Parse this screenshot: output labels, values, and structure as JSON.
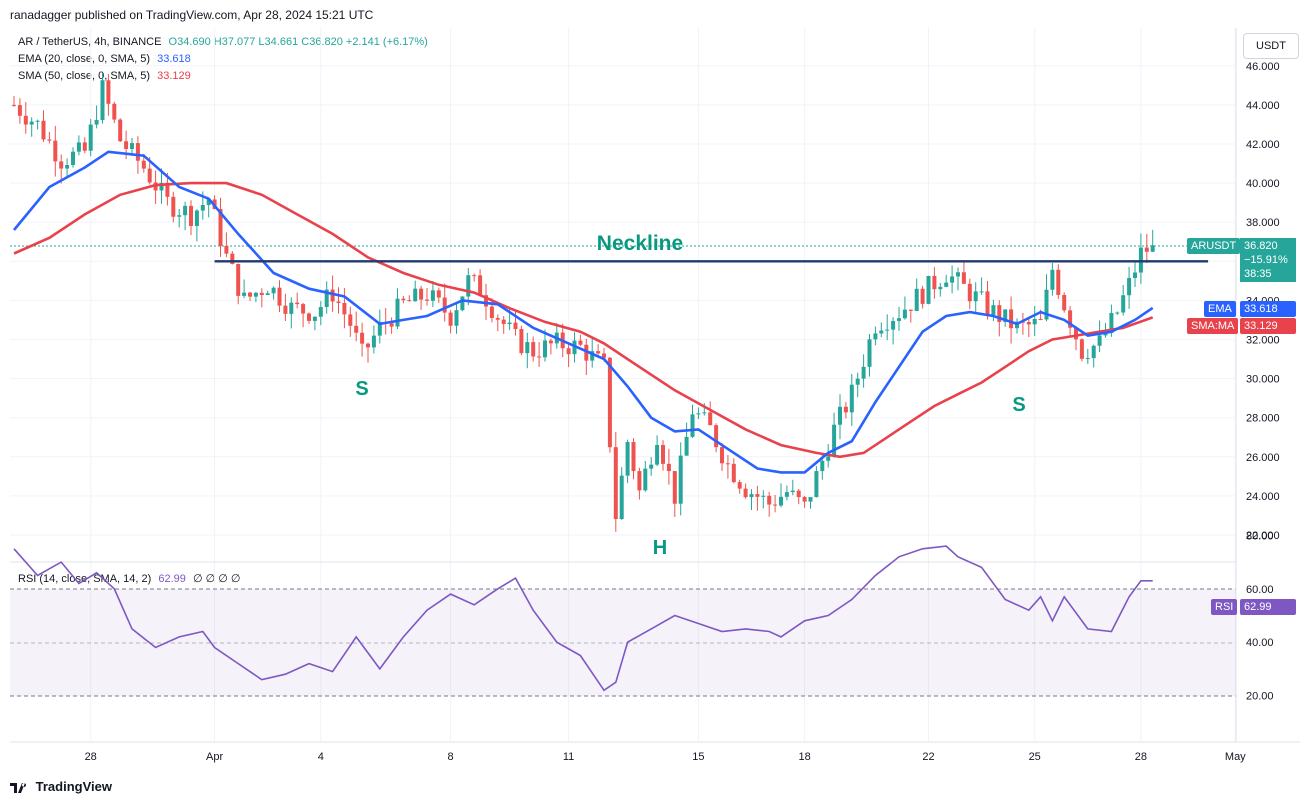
{
  "header": {
    "publisher": "ranadagger published on TradingView.com, Apr 28, 2024 15:21 UTC"
  },
  "legend": {
    "symbol": "AR / TetherUS, 4h, BINANCE",
    "ohlc": "O34.690 H37.077 L34.661 C36.820 +2.141 (+6.17%)",
    "ema_label": "EMA (20, close, 0, SMA, 5)",
    "ema_value": "33.618",
    "sma_label": "SMA (50, close, 0, SMA, 5)",
    "sma_value": "33.129",
    "rsi_label": "RSI (14, close, SMA, 14, 2)",
    "rsi_value": "62.99",
    "rsi_extra": "∅ ∅ ∅ ∅"
  },
  "toolbar": {
    "unit": "USDT"
  },
  "tags": {
    "symbol": "ARUSDT",
    "price": "36.820",
    "change": "−15.91%",
    "countdown": "38:35",
    "ema": "EMA",
    "ema_value": "33.618",
    "sma": "SMA:MA",
    "sma_value": "33.129",
    "rsi": "RSI",
    "rsi_value": "62.99"
  },
  "annotations": {
    "neckline": "Neckline",
    "left_shoulder": "S",
    "head": "H",
    "right_shoulder": "S"
  },
  "brand": "TradingView",
  "colors": {
    "up": "#26a69a",
    "down": "#ef5350",
    "ema": "#2962ff",
    "sma": "#e8424c",
    "rsi": "#7e57c2",
    "neckline": "#1e3a6e"
  },
  "chart_data": [
    {
      "type": "line",
      "name": "AR/USDT 4h candles with EMA 20 and SMA 50",
      "y_axis": {
        "ticks": [
          "46.000",
          "44.000",
          "42.000",
          "40.000",
          "38.000",
          "36.000",
          "34.000",
          "32.000",
          "30.000",
          "28.000",
          "26.000",
          "24.000",
          "22.000"
        ],
        "range": [
          21.0,
          47.0
        ]
      },
      "x_axis": {
        "ticks": [
          "28",
          "Apr",
          "4",
          "8",
          "11",
          "15",
          "18",
          "22",
          "25",
          "28",
          "May"
        ],
        "tick_index": [
          13,
          34,
          52,
          74,
          94,
          116,
          134,
          155,
          173,
          191,
          207
        ]
      },
      "price_path": [
        [
          0,
          44.0
        ],
        [
          4,
          43.0
        ],
        [
          8,
          41.2
        ],
        [
          12,
          41.6
        ],
        [
          15,
          44.8
        ],
        [
          18,
          42.2
        ],
        [
          22,
          40.8
        ],
        [
          26,
          39.0
        ],
        [
          30,
          38.4
        ],
        [
          33,
          39.2
        ],
        [
          36,
          36.2
        ],
        [
          39,
          34.0
        ],
        [
          43,
          34.8
        ],
        [
          47,
          33.6
        ],
        [
          51,
          33.4
        ],
        [
          54,
          34.4
        ],
        [
          57,
          32.8
        ],
        [
          59,
          31.2
        ],
        [
          62,
          32.6
        ],
        [
          66,
          33.8
        ],
        [
          70,
          34.3
        ],
        [
          74,
          33.2
        ],
        [
          77,
          35.0
        ],
        [
          79,
          34.6
        ],
        [
          82,
          33.2
        ],
        [
          85,
          32.0
        ],
        [
          88,
          31.4
        ],
        [
          92,
          31.8
        ],
        [
          96,
          31.6
        ],
        [
          100,
          30.6
        ],
        [
          102,
          23.0
        ],
        [
          104,
          26.8
        ],
        [
          106,
          24.2
        ],
        [
          109,
          27.2
        ],
        [
          112,
          24.0
        ],
        [
          115,
          28.4
        ],
        [
          118,
          27.4
        ],
        [
          121,
          25.6
        ],
        [
          124,
          24.4
        ],
        [
          128,
          23.6
        ],
        [
          131,
          24.2
        ],
        [
          134,
          23.4
        ],
        [
          136,
          25.0
        ],
        [
          139,
          27.4
        ],
        [
          142,
          29.2
        ],
        [
          146,
          32.8
        ],
        [
          150,
          33.4
        ],
        [
          154,
          34.4
        ],
        [
          158,
          35.4
        ],
        [
          162,
          34.4
        ],
        [
          166,
          33.4
        ],
        [
          170,
          32.6
        ],
        [
          174,
          32.8
        ],
        [
          176,
          35.6
        ],
        [
          178,
          33.8
        ],
        [
          181,
          31.4
        ],
        [
          184,
          31.8
        ],
        [
          187,
          33.4
        ],
        [
          189,
          34.8
        ],
        [
          191,
          36.4
        ],
        [
          193,
          36.82
        ]
      ],
      "ema20": [
        [
          0,
          37.6
        ],
        [
          6,
          39.8
        ],
        [
          12,
          40.8
        ],
        [
          16,
          41.6
        ],
        [
          22,
          41.4
        ],
        [
          28,
          39.8
        ],
        [
          33,
          39.2
        ],
        [
          38,
          37.4
        ],
        [
          44,
          35.4
        ],
        [
          50,
          34.6
        ],
        [
          56,
          34.2
        ],
        [
          62,
          32.8
        ],
        [
          66,
          33.0
        ],
        [
          70,
          33.2
        ],
        [
          76,
          34.0
        ],
        [
          82,
          33.8
        ],
        [
          88,
          32.6
        ],
        [
          94,
          31.8
        ],
        [
          100,
          31.0
        ],
        [
          104,
          29.6
        ],
        [
          108,
          28.0
        ],
        [
          112,
          27.3
        ],
        [
          116,
          27.4
        ],
        [
          120,
          26.6
        ],
        [
          126,
          25.4
        ],
        [
          130,
          25.2
        ],
        [
          134,
          25.2
        ],
        [
          138,
          26.2
        ],
        [
          142,
          26.8
        ],
        [
          146,
          28.8
        ],
        [
          150,
          30.6
        ],
        [
          154,
          32.4
        ],
        [
          158,
          33.2
        ],
        [
          162,
          33.4
        ],
        [
          166,
          33.2
        ],
        [
          170,
          32.8
        ],
        [
          174,
          33.4
        ],
        [
          178,
          33.0
        ],
        [
          182,
          32.2
        ],
        [
          186,
          32.4
        ],
        [
          190,
          33.0
        ],
        [
          193,
          33.618
        ]
      ],
      "sma50": [
        [
          0,
          36.4
        ],
        [
          6,
          37.2
        ],
        [
          12,
          38.4
        ],
        [
          18,
          39.4
        ],
        [
          24,
          39.9
        ],
        [
          30,
          40.0
        ],
        [
          36,
          40.0
        ],
        [
          42,
          39.4
        ],
        [
          48,
          38.4
        ],
        [
          54,
          37.4
        ],
        [
          60,
          36.2
        ],
        [
          66,
          35.4
        ],
        [
          72,
          34.8
        ],
        [
          78,
          34.4
        ],
        [
          84,
          33.6
        ],
        [
          90,
          32.9
        ],
        [
          96,
          32.4
        ],
        [
          100,
          31.8
        ],
        [
          106,
          30.6
        ],
        [
          112,
          29.4
        ],
        [
          118,
          28.4
        ],
        [
          124,
          27.4
        ],
        [
          130,
          26.6
        ],
        [
          136,
          26.2
        ],
        [
          140,
          26.0
        ],
        [
          144,
          26.2
        ],
        [
          148,
          27.0
        ],
        [
          152,
          27.8
        ],
        [
          156,
          28.6
        ],
        [
          160,
          29.2
        ],
        [
          164,
          29.8
        ],
        [
          168,
          30.6
        ],
        [
          172,
          31.4
        ],
        [
          176,
          32.0
        ],
        [
          180,
          32.2
        ],
        [
          184,
          32.4
        ],
        [
          188,
          32.6
        ],
        [
          193,
          33.129
        ]
      ],
      "neckline": {
        "y": 36.0,
        "from": 34,
        "to": 199
      }
    },
    {
      "type": "line",
      "name": "RSI 14",
      "y_axis": {
        "ticks": [
          "80.00",
          "60.00",
          "40.00",
          "20.00"
        ],
        "range": [
          13,
          88
        ],
        "bands": [
          30,
          70
        ]
      },
      "rsi": [
        [
          0,
          75
        ],
        [
          4,
          65
        ],
        [
          8,
          70
        ],
        [
          11,
          62
        ],
        [
          14,
          66
        ],
        [
          17,
          60
        ],
        [
          20,
          45
        ],
        [
          24,
          38
        ],
        [
          28,
          42
        ],
        [
          32,
          44
        ],
        [
          34,
          38
        ],
        [
          38,
          32
        ],
        [
          42,
          26
        ],
        [
          46,
          28
        ],
        [
          50,
          32
        ],
        [
          54,
          29
        ],
        [
          58,
          42
        ],
        [
          62,
          30
        ],
        [
          66,
          42
        ],
        [
          70,
          52
        ],
        [
          74,
          58
        ],
        [
          78,
          54
        ],
        [
          82,
          60
        ],
        [
          85,
          64
        ],
        [
          88,
          52
        ],
        [
          92,
          40
        ],
        [
          96,
          35
        ],
        [
          100,
          22
        ],
        [
          102,
          25
        ],
        [
          104,
          40
        ],
        [
          108,
          45
        ],
        [
          112,
          50
        ],
        [
          116,
          47
        ],
        [
          120,
          44
        ],
        [
          124,
          45
        ],
        [
          128,
          44
        ],
        [
          130,
          42
        ],
        [
          134,
          48
        ],
        [
          138,
          50
        ],
        [
          142,
          56
        ],
        [
          146,
          65
        ],
        [
          150,
          72
        ],
        [
          154,
          75
        ],
        [
          158,
          76
        ],
        [
          160,
          72
        ],
        [
          164,
          68
        ],
        [
          168,
          56
        ],
        [
          172,
          52
        ],
        [
          174,
          57
        ],
        [
          176,
          48
        ],
        [
          178,
          57
        ],
        [
          182,
          45
        ],
        [
          186,
          44
        ],
        [
          189,
          57
        ],
        [
          191,
          63
        ],
        [
          193,
          62.99
        ]
      ]
    }
  ]
}
